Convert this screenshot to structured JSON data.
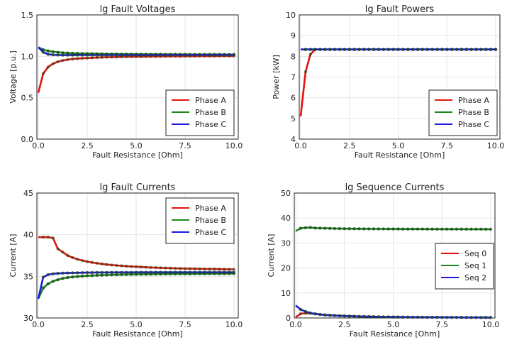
{
  "chart_data": [
    {
      "type": "line",
      "title": "lg Fault Voltages",
      "xlabel": "Fault Resistance [Ohm]",
      "ylabel": "Voltage [p.u.]",
      "xlim": [
        0,
        10
      ],
      "ylim": [
        0,
        1.5
      ],
      "xticks": [
        "0.0",
        "2.5",
        "5.0",
        "7.5",
        "10.0"
      ],
      "yticks": [
        "0.0",
        "0.5",
        "1.0",
        "1.5"
      ],
      "legend": "bottom-right",
      "grid": true,
      "x": [
        0,
        0.25,
        0.5,
        0.75,
        1.0,
        1.25,
        1.5,
        1.75,
        2.0,
        2.25,
        2.5,
        2.75,
        3.0,
        3.25,
        3.5,
        3.75,
        4.0,
        4.25,
        4.5,
        4.75,
        5.0,
        5.25,
        5.5,
        5.75,
        6.0,
        6.25,
        6.5,
        6.75,
        7.0,
        7.25,
        7.5,
        7.75,
        8.0,
        8.25,
        8.5,
        8.75,
        9.0,
        9.25,
        9.5,
        9.75,
        10.0
      ],
      "series": [
        {
          "name": "Phase A",
          "color": "#e3120b",
          "values": [
            0.56,
            0.79,
            0.87,
            0.91,
            0.935,
            0.95,
            0.96,
            0.967,
            0.972,
            0.976,
            0.979,
            0.982,
            0.985,
            0.987,
            0.989,
            0.99,
            0.992,
            0.993,
            0.994,
            0.995,
            0.996,
            0.996,
            0.997,
            0.998,
            0.998,
            0.999,
            0.999,
            1.0,
            1.0,
            1.0,
            1.001,
            1.001,
            1.001,
            1.002,
            1.002,
            1.002,
            1.002,
            1.003,
            1.003,
            1.003,
            1.003
          ]
        },
        {
          "name": "Phase B",
          "color": "#1a8a1a",
          "values": [
            1.11,
            1.08,
            1.065,
            1.055,
            1.048,
            1.043,
            1.04,
            1.037,
            1.035,
            1.033,
            1.032,
            1.031,
            1.03,
            1.029,
            1.028,
            1.027,
            1.027,
            1.026,
            1.026,
            1.025,
            1.025,
            1.025,
            1.024,
            1.024,
            1.024,
            1.024,
            1.023,
            1.023,
            1.023,
            1.023,
            1.023,
            1.022,
            1.022,
            1.022,
            1.022,
            1.022,
            1.022,
            1.022,
            1.022,
            1.021,
            1.021
          ]
        },
        {
          "name": "Phase C",
          "color": "#1a1ae0",
          "values": [
            1.11,
            1.05,
            1.025,
            1.018,
            1.016,
            1.015,
            1.015,
            1.015,
            1.016,
            1.016,
            1.016,
            1.016,
            1.016,
            1.016,
            1.017,
            1.017,
            1.017,
            1.017,
            1.017,
            1.017,
            1.017,
            1.017,
            1.017,
            1.017,
            1.018,
            1.018,
            1.018,
            1.018,
            1.018,
            1.018,
            1.018,
            1.018,
            1.018,
            1.018,
            1.018,
            1.018,
            1.018,
            1.018,
            1.018,
            1.018,
            1.018
          ]
        }
      ]
    },
    {
      "type": "line",
      "title": "lg Fault Powers",
      "xlabel": "Fault Resistance [Ohm]",
      "ylabel": "Power [kW]",
      "xlim": [
        0,
        10
      ],
      "ylim": [
        4,
        10
      ],
      "xticks": [
        "0.0",
        "2.5",
        "5.0",
        "7.5",
        "10.0"
      ],
      "yticks": [
        "4",
        "5",
        "6",
        "7",
        "8",
        "9",
        "10"
      ],
      "legend": "bottom-right",
      "grid": true,
      "x": [
        0,
        0.25,
        0.5,
        0.75,
        1.0,
        1.25,
        1.5,
        1.75,
        2.0,
        2.25,
        2.5,
        2.75,
        3.0,
        3.25,
        3.5,
        3.75,
        4.0,
        4.25,
        4.5,
        4.75,
        5.0,
        5.25,
        5.5,
        5.75,
        6.0,
        6.25,
        6.5,
        6.75,
        7.0,
        7.25,
        7.5,
        7.75,
        8.0,
        8.25,
        8.5,
        8.75,
        9.0,
        9.25,
        9.5,
        9.75,
        10.0
      ],
      "series": [
        {
          "name": "Phase A",
          "color": "#e3120b",
          "values": [
            5.1,
            7.25,
            8.1,
            8.33,
            8.33,
            8.33,
            8.33,
            8.33,
            8.33,
            8.33,
            8.33,
            8.33,
            8.33,
            8.33,
            8.33,
            8.33,
            8.33,
            8.33,
            8.33,
            8.33,
            8.33,
            8.33,
            8.33,
            8.33,
            8.33,
            8.33,
            8.33,
            8.33,
            8.33,
            8.33,
            8.33,
            8.33,
            8.33,
            8.33,
            8.33,
            8.33,
            8.33,
            8.33,
            8.33,
            8.33,
            8.33
          ]
        },
        {
          "name": "Phase B",
          "color": "#1a8a1a",
          "values": [
            8.33,
            8.33,
            8.33,
            8.33,
            8.33,
            8.33,
            8.33,
            8.33,
            8.33,
            8.33,
            8.33,
            8.33,
            8.33,
            8.33,
            8.33,
            8.33,
            8.33,
            8.33,
            8.33,
            8.33,
            8.33,
            8.33,
            8.33,
            8.33,
            8.33,
            8.33,
            8.33,
            8.33,
            8.33,
            8.33,
            8.33,
            8.33,
            8.33,
            8.33,
            8.33,
            8.33,
            8.33,
            8.33,
            8.33,
            8.33,
            8.33
          ]
        },
        {
          "name": "Phase C",
          "color": "#1a1ae0",
          "values": [
            8.33,
            8.33,
            8.33,
            8.33,
            8.33,
            8.33,
            8.33,
            8.33,
            8.33,
            8.33,
            8.33,
            8.33,
            8.33,
            8.33,
            8.33,
            8.33,
            8.33,
            8.33,
            8.33,
            8.33,
            8.33,
            8.33,
            8.33,
            8.33,
            8.33,
            8.33,
            8.33,
            8.33,
            8.33,
            8.33,
            8.33,
            8.33,
            8.33,
            8.33,
            8.33,
            8.33,
            8.33,
            8.33,
            8.33,
            8.33,
            8.33
          ]
        }
      ]
    },
    {
      "type": "line",
      "title": "lg Fault Currents",
      "xlabel": "Fault Resistance [Ohm]",
      "ylabel": "Current [A]",
      "xlim": [
        0,
        10
      ],
      "ylim": [
        30,
        45
      ],
      "xticks": [
        "0.0",
        "2.5",
        "5.0",
        "7.5",
        "10.0"
      ],
      "yticks": [
        "30",
        "35",
        "40",
        "45"
      ],
      "legend": "top-right",
      "grid": true,
      "x": [
        0,
        0.25,
        0.5,
        0.75,
        1.0,
        1.25,
        1.5,
        1.75,
        2.0,
        2.25,
        2.5,
        2.75,
        3.0,
        3.25,
        3.5,
        3.75,
        4.0,
        4.25,
        4.5,
        4.75,
        5.0,
        5.25,
        5.5,
        5.75,
        6.0,
        6.25,
        6.5,
        6.75,
        7.0,
        7.25,
        7.5,
        7.75,
        8.0,
        8.25,
        8.5,
        8.75,
        9.0,
        9.25,
        9.5,
        9.75,
        10.0
      ],
      "series": [
        {
          "name": "Phase A",
          "color": "#e3120b",
          "values": [
            39.7,
            39.7,
            39.7,
            39.6,
            38.3,
            37.9,
            37.5,
            37.25,
            37.05,
            36.9,
            36.77,
            36.66,
            36.57,
            36.49,
            36.42,
            36.36,
            36.31,
            36.26,
            36.22,
            36.18,
            36.15,
            36.12,
            36.09,
            36.06,
            36.04,
            36.02,
            36.0,
            35.98,
            35.96,
            35.95,
            35.93,
            35.92,
            35.91,
            35.9,
            35.89,
            35.88,
            35.87,
            35.86,
            35.85,
            35.84,
            35.84
          ]
        },
        {
          "name": "Phase B",
          "color": "#1a8a1a",
          "values": [
            32.3,
            33.6,
            34.1,
            34.4,
            34.6,
            34.75,
            34.85,
            34.92,
            34.98,
            35.02,
            35.06,
            35.09,
            35.12,
            35.14,
            35.16,
            35.18,
            35.19,
            35.21,
            35.22,
            35.23,
            35.24,
            35.25,
            35.26,
            35.26,
            35.27,
            35.28,
            35.28,
            35.29,
            35.29,
            35.3,
            35.3,
            35.3,
            35.31,
            35.31,
            35.31,
            35.32,
            35.32,
            35.32,
            35.32,
            35.33,
            35.33
          ]
        },
        {
          "name": "Phase C",
          "color": "#1a1ae0",
          "values": [
            32.3,
            34.9,
            35.2,
            35.3,
            35.35,
            35.38,
            35.4,
            35.42,
            35.43,
            35.44,
            35.45,
            35.45,
            35.46,
            35.46,
            35.46,
            35.47,
            35.47,
            35.47,
            35.47,
            35.47,
            35.48,
            35.48,
            35.48,
            35.48,
            35.48,
            35.48,
            35.48,
            35.48,
            35.48,
            35.48,
            35.48,
            35.48,
            35.48,
            35.48,
            35.48,
            35.48,
            35.48,
            35.48,
            35.48,
            35.48,
            35.48
          ]
        }
      ]
    },
    {
      "type": "line",
      "title": "lg Sequence Currents",
      "xlabel": "Fault Resistance [Ohm]",
      "ylabel": "Current [A]",
      "xlim": [
        0,
        10
      ],
      "ylim": [
        0,
        50
      ],
      "xticks": [
        "0.0",
        "2.5",
        "5.0",
        "7.5",
        "10.0"
      ],
      "yticks": [
        "0",
        "10",
        "20",
        "30",
        "40",
        "50"
      ],
      "legend": "right",
      "grid": true,
      "x": [
        0,
        0.25,
        0.5,
        0.75,
        1.0,
        1.25,
        1.5,
        1.75,
        2.0,
        2.25,
        2.5,
        2.75,
        3.0,
        3.25,
        3.5,
        3.75,
        4.0,
        4.25,
        4.5,
        4.75,
        5.0,
        5.25,
        5.5,
        5.75,
        6.0,
        6.25,
        6.5,
        6.75,
        7.0,
        7.25,
        7.5,
        7.75,
        8.0,
        8.25,
        8.5,
        8.75,
        9.0,
        9.25,
        9.5,
        9.75,
        10.0
      ],
      "series": [
        {
          "name": "Seq 0",
          "color": "#e3120b",
          "values": [
            0.3,
            1.7,
            1.9,
            1.85,
            1.6,
            1.4,
            1.25,
            1.1,
            1.0,
            0.9,
            0.82,
            0.75,
            0.68,
            0.62,
            0.58,
            0.54,
            0.5,
            0.47,
            0.44,
            0.41,
            0.39,
            0.37,
            0.35,
            0.33,
            0.31,
            0.3,
            0.29,
            0.27,
            0.26,
            0.25,
            0.24,
            0.23,
            0.22,
            0.22,
            0.21,
            0.2,
            0.2,
            0.19,
            0.18,
            0.18,
            0.17
          ]
        },
        {
          "name": "Seq 1",
          "color": "#1a8a1a",
          "values": [
            34.8,
            35.9,
            36.1,
            36.2,
            36.0,
            35.95,
            35.9,
            35.85,
            35.8,
            35.78,
            35.75,
            35.73,
            35.71,
            35.7,
            35.68,
            35.67,
            35.66,
            35.65,
            35.64,
            35.63,
            35.62,
            35.62,
            35.61,
            35.6,
            35.6,
            35.59,
            35.59,
            35.58,
            35.58,
            35.57,
            35.57,
            35.57,
            35.56,
            35.56,
            35.56,
            35.55,
            35.55,
            35.55,
            35.55,
            35.54,
            35.54
          ]
        },
        {
          "name": "Seq 2",
          "color": "#1a1ae0",
          "values": [
            5.0,
            3.4,
            2.6,
            2.0,
            1.65,
            1.4,
            1.2,
            1.05,
            0.95,
            0.85,
            0.77,
            0.7,
            0.64,
            0.59,
            0.55,
            0.51,
            0.48,
            0.45,
            0.42,
            0.4,
            0.38,
            0.36,
            0.34,
            0.32,
            0.31,
            0.3,
            0.28,
            0.27,
            0.26,
            0.25,
            0.24,
            0.23,
            0.22,
            0.22,
            0.21,
            0.2,
            0.2,
            0.19,
            0.19,
            0.18,
            0.18
          ]
        }
      ]
    }
  ]
}
